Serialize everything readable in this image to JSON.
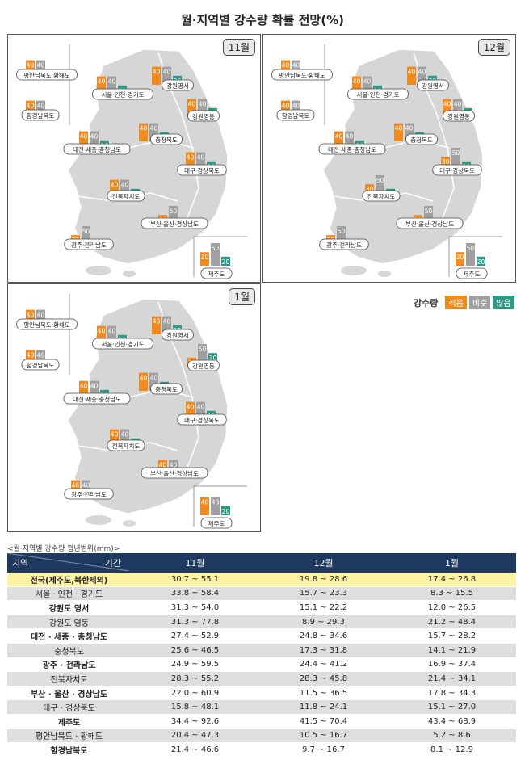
{
  "title": "월·지역별 강수량 확률 전망(%)",
  "colors": {
    "low": "#f08a1c",
    "normal": "#a0a0a0",
    "high": "#2e9a86"
  },
  "legend": {
    "title": "강수량",
    "items": [
      "적음",
      "비슷",
      "많음"
    ]
  },
  "chart_data": [
    {
      "type": "bar",
      "month": "11월",
      "categories": [
        "적음",
        "비슷",
        "많음"
      ],
      "regions": [
        {
          "name": "평안남북도·황해도",
          "values": [
            40,
            40,
            20
          ]
        },
        {
          "name": "함경남북도",
          "values": [
            40,
            40,
            20
          ]
        },
        {
          "name": "서울·인천·경기도",
          "values": [
            40,
            40,
            20
          ]
        },
        {
          "name": "강원영서",
          "values": [
            40,
            40,
            20
          ]
        },
        {
          "name": "강원영동",
          "values": [
            40,
            40,
            20
          ]
        },
        {
          "name": "대전·세종·충청남도",
          "values": [
            40,
            40,
            20
          ]
        },
        {
          "name": "충청북도",
          "values": [
            40,
            40,
            20
          ]
        },
        {
          "name": "대구·경상북도",
          "values": [
            40,
            40,
            20
          ]
        },
        {
          "name": "전북자치도",
          "values": [
            40,
            40,
            20
          ]
        },
        {
          "name": "부산·울산·경상남도",
          "values": [
            30,
            50,
            20
          ]
        },
        {
          "name": "광주·전라남도",
          "values": [
            30,
            50,
            20
          ]
        },
        {
          "name": "제주도",
          "values": [
            30,
            50,
            20
          ]
        }
      ]
    },
    {
      "type": "bar",
      "month": "12월",
      "categories": [
        "적음",
        "비슷",
        "많음"
      ],
      "regions": [
        {
          "name": "평안남북도·황해도",
          "values": [
            40,
            40,
            20
          ]
        },
        {
          "name": "함경남북도",
          "values": [
            40,
            40,
            20
          ]
        },
        {
          "name": "서울·인천·경기도",
          "values": [
            40,
            40,
            20
          ]
        },
        {
          "name": "강원영서",
          "values": [
            40,
            40,
            20
          ]
        },
        {
          "name": "강원영동",
          "values": [
            40,
            40,
            20
          ]
        },
        {
          "name": "대전·세종·충청남도",
          "values": [
            40,
            40,
            20
          ]
        },
        {
          "name": "충청북도",
          "values": [
            40,
            40,
            20
          ]
        },
        {
          "name": "대구·경상북도",
          "values": [
            30,
            50,
            20
          ]
        },
        {
          "name": "전북자치도",
          "values": [
            30,
            50,
            20
          ]
        },
        {
          "name": "부산·울산·경상남도",
          "values": [
            30,
            50,
            20
          ]
        },
        {
          "name": "광주·전라남도",
          "values": [
            30,
            50,
            20
          ]
        },
        {
          "name": "제주도",
          "values": [
            30,
            50,
            20
          ]
        }
      ]
    },
    {
      "type": "bar",
      "month": "1월",
      "categories": [
        "적음",
        "비슷",
        "많음"
      ],
      "regions": [
        {
          "name": "평안남북도·황해도",
          "values": [
            40,
            40,
            20
          ]
        },
        {
          "name": "함경남북도",
          "values": [
            40,
            40,
            20
          ]
        },
        {
          "name": "서울·인천·경기도",
          "values": [
            40,
            40,
            20
          ]
        },
        {
          "name": "강원영서",
          "values": [
            40,
            40,
            20
          ]
        },
        {
          "name": "강원영동",
          "values": [
            20,
            50,
            30
          ]
        },
        {
          "name": "대전·세종·충청남도",
          "values": [
            40,
            40,
            20
          ]
        },
        {
          "name": "충청북도",
          "values": [
            40,
            40,
            20
          ]
        },
        {
          "name": "대구·경상북도",
          "values": [
            40,
            40,
            20
          ]
        },
        {
          "name": "전북자치도",
          "values": [
            40,
            40,
            20
          ]
        },
        {
          "name": "부산·울산·경상남도",
          "values": [
            40,
            40,
            20
          ]
        },
        {
          "name": "광주·전라남도",
          "values": [
            40,
            40,
            20
          ]
        },
        {
          "name": "제주도",
          "values": [
            40,
            40,
            20
          ]
        }
      ]
    }
  ],
  "table": {
    "caption": "<월·지역별 강수량 평년범위(mm)>",
    "header": {
      "region": "지역",
      "period": "기간",
      "months": [
        "11월",
        "12월",
        "1월"
      ]
    },
    "rows": [
      {
        "region": "전국(제주도,북한제외)",
        "values": [
          "30.7 ~ 55.1",
          "19.8 ~ 28.6",
          "17.4 ~ 26.8"
        ],
        "highlight": true,
        "bold": true
      },
      {
        "region": "서울 · 인천 · 경기도",
        "values": [
          "33.8 ~ 58.4",
          "15.7 ~ 23.3",
          "8.3 ~ 15.5"
        ]
      },
      {
        "region": "강원도 영서",
        "values": [
          "31.3 ~ 54.0",
          "15.1 ~ 22.2",
          "12.0 ~ 26.5"
        ],
        "bold": true
      },
      {
        "region": "강원도 영동",
        "values": [
          "31.3 ~ 77.8",
          "8.9 ~ 29.3",
          "21.2 ~ 48.4"
        ]
      },
      {
        "region": "대전 · 세종 · 충청남도",
        "values": [
          "27.4 ~ 52.9",
          "24.8 ~ 34.6",
          "15.7 ~ 28.2"
        ],
        "bold": true
      },
      {
        "region": "충청북도",
        "values": [
          "25.6 ~ 46.5",
          "17.3 ~ 31.8",
          "14.1 ~ 21.9"
        ]
      },
      {
        "region": "광주 · 전라남도",
        "values": [
          "24.9 ~ 59.5",
          "24.4 ~ 41.2",
          "16.9 ~ 37.4"
        ],
        "bold": true
      },
      {
        "region": "전북자치도",
        "values": [
          "28.3 ~ 55.2",
          "28.3 ~ 45.8",
          "21.4 ~ 34.1"
        ]
      },
      {
        "region": "부산 · 울산 · 경상남도",
        "values": [
          "22.0 ~ 60.9",
          "11.5 ~ 36.5",
          "17.8 ~ 34.3"
        ],
        "bold": true
      },
      {
        "region": "대구 · 경상북도",
        "values": [
          "15.8 ~ 48.1",
          "11.8 ~ 24.1",
          "15.1 ~ 27.0"
        ]
      },
      {
        "region": "제주도",
        "values": [
          "34.4 ~ 92.6",
          "41.5 ~ 70.4",
          "43.4 ~ 68.9"
        ],
        "bold": true
      },
      {
        "region": "평안남북도 · 황해도",
        "values": [
          "20.4 ~ 47.3",
          "10.5 ~ 16.7",
          "5.2 ~ 8.6"
        ]
      },
      {
        "region": "함경남북도",
        "values": [
          "21.4 ~ 46.6",
          "9.7 ~ 16.7",
          "8.1 ~ 12.9"
        ],
        "bold": true
      }
    ]
  }
}
